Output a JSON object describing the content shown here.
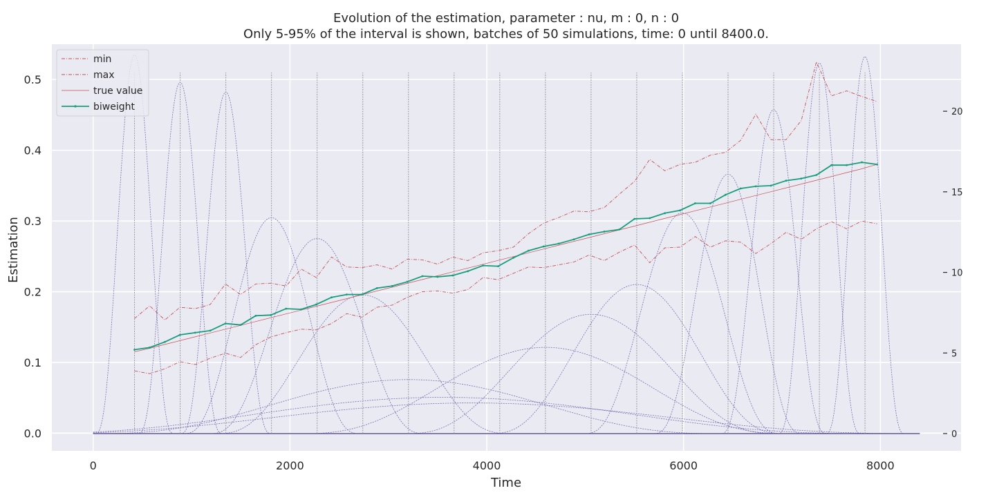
{
  "chart_data": {
    "type": "line",
    "title": "Evolution of the estimation, parameter : nu, m : 0, n : 0",
    "subtitle": "Only 5-95% of the interval is shown, batches of 50 simulations, time: 0 until 8400.0.",
    "xlabel": "Time",
    "ylabel": "Estimation",
    "xlim": [
      -420,
      8820
    ],
    "ylim": [
      -0.025,
      0.55
    ],
    "y2lim": [
      -1.07,
      24.16
    ],
    "x_ticks": [
      0,
      2000,
      4000,
      6000,
      8000
    ],
    "y_ticks": [
      0.0,
      0.1,
      0.2,
      0.3,
      0.4,
      0.5
    ],
    "y_tick_labels": [
      "0.0",
      "0.1",
      "0.2",
      "0.3",
      "0.4",
      "0.5"
    ],
    "y2_ticks": [
      0,
      5,
      10,
      15,
      20
    ],
    "grid": true,
    "legend_position": "top-left",
    "colors": {
      "background": "#eaeaf2",
      "grid": "#ffffff",
      "minmax": "#c44e52",
      "true_value": "#c44e52",
      "biweight": "#179c7d",
      "kernel": "#6a5fa8",
      "vline": "#9a9aa8"
    },
    "x": [
      420,
      574,
      728,
      882,
      1036,
      1190,
      1344,
      1498,
      1652,
      1806,
      1960,
      2114,
      2268,
      2422,
      2576,
      2730,
      2884,
      3038,
      3192,
      3346,
      3500,
      3654,
      3808,
      3962,
      4116,
      4270,
      4424,
      4578,
      4732,
      4886,
      5040,
      5194,
      5348,
      5502,
      5656,
      5810,
      5964,
      6118,
      6272,
      6426,
      6580,
      6734,
      6888,
      7042,
      7196,
      7350,
      7504,
      7658,
      7812,
      7966
    ],
    "series": [
      {
        "name": "min",
        "values": [
          0.162,
          0.18,
          0.16,
          0.178,
          0.176,
          0.182,
          0.211,
          0.196,
          0.211,
          0.212,
          0.208,
          0.232,
          0.22,
          0.249,
          0.235,
          0.234,
          0.238,
          0.232,
          0.246,
          0.245,
          0.239,
          0.249,
          0.244,
          0.255,
          0.258,
          0.263,
          0.282,
          0.297,
          0.305,
          0.314,
          0.313,
          0.319,
          0.338,
          0.356,
          0.387,
          0.371,
          0.38,
          0.383,
          0.393,
          0.397,
          0.414,
          0.451,
          0.415,
          0.415,
          0.442,
          0.525,
          0.477,
          0.484,
          0.476,
          0.469
        ]
      },
      {
        "name": "max",
        "values": [
          0.088,
          0.084,
          0.091,
          0.101,
          0.097,
          0.106,
          0.113,
          0.107,
          0.125,
          0.136,
          0.142,
          0.147,
          0.146,
          0.155,
          0.169,
          0.164,
          0.178,
          0.181,
          0.192,
          0.2,
          0.201,
          0.198,
          0.203,
          0.22,
          0.217,
          0.226,
          0.235,
          0.234,
          0.238,
          0.242,
          0.252,
          0.244,
          0.256,
          0.266,
          0.241,
          0.262,
          0.263,
          0.278,
          0.263,
          0.272,
          0.27,
          0.254,
          0.268,
          0.284,
          0.274,
          0.289,
          0.299,
          0.289,
          0.3,
          0.296
        ]
      },
      {
        "name": "true value",
        "values": [
          0.115,
          0.12,
          0.1254,
          0.1308,
          0.1362,
          0.1416,
          0.147,
          0.1524,
          0.1578,
          0.1632,
          0.1686,
          0.174,
          0.1794,
          0.1848,
          0.1902,
          0.1956,
          0.201,
          0.2064,
          0.2118,
          0.2172,
          0.2226,
          0.228,
          0.2334,
          0.2388,
          0.2442,
          0.2496,
          0.255,
          0.2604,
          0.2658,
          0.2712,
          0.2766,
          0.282,
          0.2874,
          0.2928,
          0.2982,
          0.3036,
          0.309,
          0.3144,
          0.3198,
          0.3252,
          0.3306,
          0.336,
          0.3414,
          0.3468,
          0.3522,
          0.3576,
          0.363,
          0.3684,
          0.3738,
          0.38
        ]
      },
      {
        "name": "biweight",
        "values": [
          0.118,
          0.121,
          0.129,
          0.139,
          0.142,
          0.145,
          0.155,
          0.153,
          0.166,
          0.167,
          0.176,
          0.175,
          0.182,
          0.192,
          0.196,
          0.196,
          0.205,
          0.208,
          0.214,
          0.222,
          0.221,
          0.223,
          0.229,
          0.237,
          0.236,
          0.248,
          0.258,
          0.264,
          0.268,
          0.274,
          0.281,
          0.285,
          0.288,
          0.303,
          0.304,
          0.311,
          0.315,
          0.325,
          0.325,
          0.337,
          0.346,
          0.349,
          0.35,
          0.357,
          0.36,
          0.365,
          0.379,
          0.379,
          0.383,
          0.38
        ]
      }
    ],
    "vertical_lines_x": [
      420,
      884,
      1348,
      1812,
      2276,
      2740,
      3204,
      3668,
      4132,
      4596,
      5060,
      5524,
      5988,
      6452,
      6916,
      7380,
      7844
    ],
    "kernels": [
      {
        "center": 420,
        "width": 400,
        "height": 23.5
      },
      {
        "center": 884,
        "width": 430,
        "height": 21.8
      },
      {
        "center": 1348,
        "width": 460,
        "height": 21.2
      },
      {
        "center": 1812,
        "width": 900,
        "height": 13.4
      },
      {
        "center": 2276,
        "width": 1100,
        "height": 12.1
      },
      {
        "center": 2740,
        "width": 1500,
        "height": 8.6
      },
      {
        "center": 3204,
        "width": 3200,
        "height": 3.35
      },
      {
        "center": 3560,
        "width": 4400,
        "height": 2.25
      },
      {
        "center": 3850,
        "width": 4600,
        "height": 1.9
      },
      {
        "center": 4596,
        "width": 2500,
        "height": 5.35
      },
      {
        "center": 5060,
        "width": 1900,
        "height": 7.4
      },
      {
        "center": 5524,
        "width": 1500,
        "height": 9.25
      },
      {
        "center": 5988,
        "width": 1000,
        "height": 13.7
      },
      {
        "center": 6452,
        "width": 760,
        "height": 16.1
      },
      {
        "center": 6916,
        "width": 540,
        "height": 20.1
      },
      {
        "center": 7380,
        "width": 420,
        "height": 23.0
      },
      {
        "center": 7844,
        "width": 400,
        "height": 23.4
      }
    ],
    "kernel_support": [
      0,
      8400
    ]
  }
}
